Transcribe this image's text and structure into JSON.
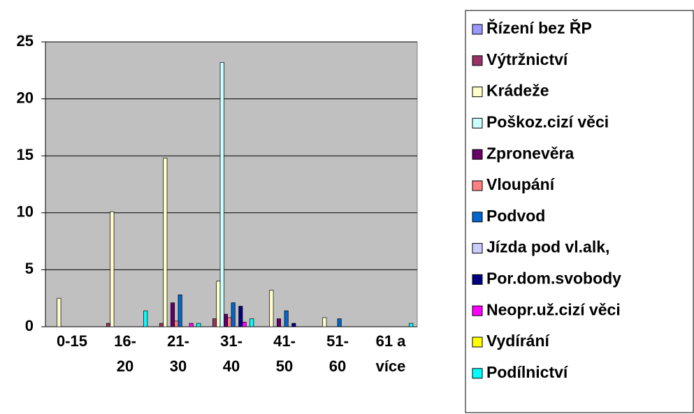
{
  "chart_data": {
    "type": "bar",
    "categories": [
      "0-15",
      "16-\n20",
      "21-\n30",
      "31-\n40",
      "41-\n50",
      "51-\n60",
      "61 a\nvíce"
    ],
    "ylim": [
      0,
      25
    ],
    "yticks": [
      0,
      5,
      10,
      15,
      20,
      25
    ],
    "grid": true,
    "legend": "right",
    "series": [
      {
        "name": "Řízení bez ŘP",
        "color": "#9999FF",
        "values": [
          0,
          0,
          0,
          0,
          0,
          0,
          0
        ]
      },
      {
        "name": "Výtržnictví",
        "color": "#993366",
        "values": [
          0,
          0.3,
          0.3,
          0.7,
          0,
          0,
          0
        ]
      },
      {
        "name": "Krádeže",
        "color": "#FFFFCC",
        "values": [
          2.5,
          10.1,
          14.8,
          4,
          3.2,
          0.8,
          0
        ]
      },
      {
        "name": "Poškoz.cizí věci",
        "color": "#CCFFFF",
        "values": [
          0,
          0,
          0,
          23.2,
          0,
          0,
          0
        ]
      },
      {
        "name": "Zpronevěra",
        "color": "#660066",
        "values": [
          0,
          0,
          2.1,
          1.1,
          0.7,
          0,
          0
        ]
      },
      {
        "name": "Vloupání",
        "color": "#FF8080",
        "values": [
          0,
          0,
          0.5,
          0.8,
          0,
          0,
          0
        ]
      },
      {
        "name": "Podvod",
        "color": "#0066CC",
        "values": [
          0,
          0,
          2.8,
          2.1,
          1.4,
          0.7,
          0
        ]
      },
      {
        "name": "Jízda pod vl.alk,",
        "color": "#CCCCFF",
        "values": [
          0,
          0,
          0,
          0,
          0,
          0,
          0
        ]
      },
      {
        "name": "Por.dom.svobody",
        "color": "#000080",
        "values": [
          0,
          0,
          0,
          1.8,
          0.3,
          0,
          0
        ]
      },
      {
        "name": "Neopr.už.cizí věci",
        "color": "#FF00FF",
        "values": [
          0,
          0,
          0.3,
          0.4,
          0,
          0,
          0
        ]
      },
      {
        "name": "Vydírání",
        "color": "#FFFF00",
        "values": [
          0,
          0,
          0,
          0,
          0,
          0,
          0
        ]
      },
      {
        "name": "Podílnictví",
        "color": "#00FFFF",
        "values": [
          0,
          1.4,
          0.3,
          0.7,
          0,
          0,
          0.3
        ]
      }
    ]
  }
}
